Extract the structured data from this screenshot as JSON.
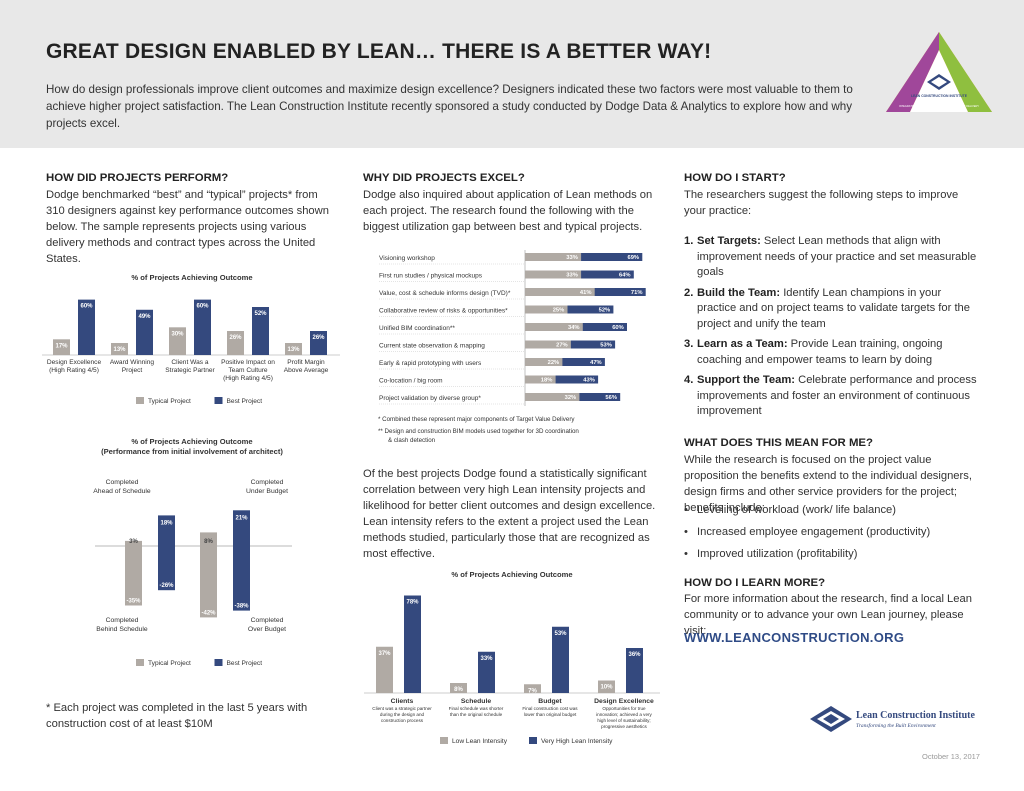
{
  "header": {
    "title": "GREAT DESIGN ENABLED BY LEAN… THERE IS A BETTER WAY!",
    "intro": "How do design professionals improve client outcomes and maximize design excellence? Designers indicated these two factors were most valuable to them to achieve higher project satisfaction. The Lean Construction Institute recently sponsored a study conducted by Dodge Data & Analytics to explore how and why projects excel.",
    "logo_text": "LEAN CONSTRUCTION INSTITUTE",
    "logo_subtext": "INTEGRATING PROJECT DELIVERY & LEAN PROJECT DELIVERY"
  },
  "col1": {
    "heading": "HOW DID PROJECTS PERFORM?",
    "body": "Dodge benchmarked “best” and “typical” projects* from 310 designers against key performance outcomes shown below. The sample represents projects using various delivery methods and contract types across the United States.",
    "footnote": "* Each project was completed in the last 5 years with construction cost of at least $10M"
  },
  "col2": {
    "heading": "WHY DID PROJECTS EXCEL?",
    "body": "Dodge also inquired about application of Lean methods on each project. The research found the following with the biggest utilization gap between best and typical projects.",
    "note1": "*  Combined these represent major components of Target Value Delivery",
    "note2a": "** Design and construction BIM models used together for 3D coordination",
    "note2b": "& clash detection",
    "paragraph": "Of the best projects Dodge found a statistically significant correlation between very high Lean intensity projects and likelihood for better client outcomes and design excellence. Lean intensity refers to the extent a project used the Lean methods studied, particularly those that are recognized as most effective."
  },
  "col3": {
    "heading1": "HOW DO I START?",
    "body1": "The researchers suggest the following steps to improve your practice:",
    "steps": [
      {
        "num": "1.",
        "bold": "Set Targets:",
        "text": " Select Lean methods that align with improvement needs of your practice and set measurable goals"
      },
      {
        "num": "2.",
        "bold": "Build the Team:",
        "text": " Identify Lean champions in your practice and on project teams to validate targets for the project and unify the team"
      },
      {
        "num": "3.",
        "bold": "Learn as a Team:",
        "text": " Provide Lean training, ongoing coaching and empower teams to learn by doing"
      },
      {
        "num": "4.",
        "bold": "Support the Team:",
        "text": " Celebrate performance and process improvements and foster an environment of continuous improvement"
      }
    ],
    "heading2": "WHAT DOES THIS MEAN FOR ME?",
    "body2": "While the research is focused on the project value proposition the benefits extend to the individual designers, design firms and other service providers for the project; benefits include:",
    "bullets": [
      "Leveling of workload (work/ life balance)",
      "Increased employee engagement (productivity)",
      "Improved utilization (profitability)"
    ],
    "heading3": "HOW DO I LEARN MORE?",
    "body3": "For more information about the research, find a local Lean community or to advance your own Lean journey, please visit:",
    "website": "WWW.LEANCONSTRUCTION.ORG",
    "footer_logo": "Lean Construction Institute",
    "footer_tagline": "Transforming the Built Environment",
    "date": "October 13, 2017"
  },
  "colors": {
    "typical": "#b0aaa4",
    "best": "#34497e"
  },
  "chart_data": [
    {
      "type": "bar",
      "title": "% of Projects Achieving Outcome",
      "categories": [
        "Design Excellence (High Rating 4/5)",
        "Award Winning Project",
        "Client Was a Strategic Partner",
        "Positive Impact on Team Culture (High Rating 4/5)",
        "Profit Margin Above Average"
      ],
      "cat_lines": [
        [
          "Design Excellence",
          "(High Rating 4/5)"
        ],
        [
          "Award Winning",
          "Project"
        ],
        [
          "Client Was a",
          "Strategic Partner"
        ],
        [
          "Positive Impact on",
          "Team Culture",
          "(High Rating 4/5)"
        ],
        [
          "Profit Margin",
          "Above Average"
        ]
      ],
      "series": [
        {
          "name": "Typical Project",
          "values": [
            17,
            13,
            30,
            26,
            13
          ]
        },
        {
          "name": "Best Project",
          "values": [
            60,
            49,
            60,
            52,
            26
          ]
        }
      ],
      "ylim": [
        0,
        65
      ]
    },
    {
      "type": "bar",
      "title": "% of Projects Achieving Outcome",
      "subtitle": "(Performance from initial involvement of architect)",
      "groups": [
        {
          "top": [
            "Completed",
            "Ahead of Schedule"
          ],
          "bottom": [
            "Completed",
            "Behind Schedule"
          ]
        },
        {
          "top": [
            "Completed",
            "Under Budget"
          ],
          "bottom": [
            "Completed",
            "Over Budget"
          ]
        }
      ],
      "series": [
        {
          "name": "Typical Project",
          "positive": [
            3,
            8
          ],
          "negative": [
            -35,
            -42
          ]
        },
        {
          "name": "Best Project",
          "positive": [
            18,
            21
          ],
          "negative": [
            -26,
            -38
          ]
        }
      ],
      "ylim": [
        -45,
        25
      ]
    },
    {
      "type": "bar",
      "orientation": "horizontal",
      "categories": [
        "Visioning workshop",
        "First run studies / physical mockups",
        "Value, cost & schedule informs design (TVD)*",
        "Collaborative review of risks & opportunities*",
        "Unified BIM coordination**",
        "Current state observation & mapping",
        "Early & rapid prototyping with users",
        "Co-location / big room",
        "Project validation by diverse group*"
      ],
      "series": [
        {
          "name": "Typical Project",
          "values": [
            33,
            33,
            41,
            25,
            34,
            27,
            22,
            18,
            32
          ]
        },
        {
          "name": "Best Project",
          "values": [
            69,
            64,
            71,
            52,
            60,
            53,
            47,
            43,
            56
          ]
        }
      ],
      "xlim": [
        0,
        75
      ]
    },
    {
      "type": "bar",
      "title": "% of Projects Achieving Outcome",
      "categories": [
        "Clients",
        "Schedule",
        "Budget",
        "Design Excellence"
      ],
      "descriptions": [
        [
          "Client was a strategic partner",
          "during the design and",
          "construction process"
        ],
        [
          "Final schedule was shorter",
          "than the original schedule"
        ],
        [
          "Final construction cost was",
          "lower than original budget"
        ],
        [
          "Opportunities for true",
          "innovation; achieved a very",
          "high level of sustainability;",
          "progressive aesthetics"
        ]
      ],
      "series": [
        {
          "name": "Low Lean Intensity",
          "values": [
            37,
            8,
            7,
            10
          ]
        },
        {
          "name": "Very High Lean Intensity",
          "values": [
            78,
            33,
            53,
            36
          ]
        }
      ],
      "ylim": [
        0,
        80
      ]
    }
  ]
}
